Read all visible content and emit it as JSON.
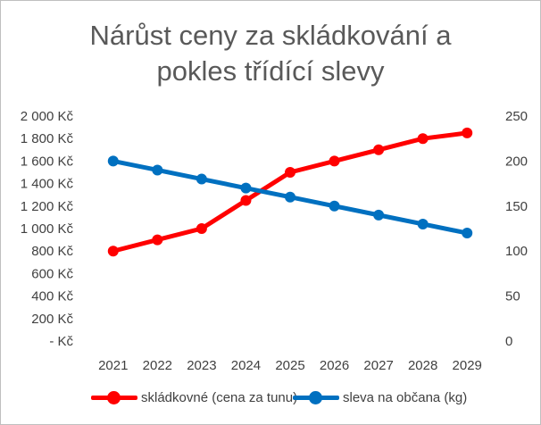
{
  "chart_data": {
    "type": "line",
    "title_lines": [
      "Nárůst ceny za skládkování a",
      "pokles třídící slevy"
    ],
    "categories": [
      "2021",
      "2022",
      "2023",
      "2024",
      "2025",
      "2026",
      "2027",
      "2028",
      "2029"
    ],
    "series": [
      {
        "name": "skládkovné (cena za tunu)",
        "axis": "left",
        "color": "#ff0000",
        "values": [
          800,
          900,
          1000,
          1250,
          1500,
          1600,
          1700,
          1800,
          1850
        ]
      },
      {
        "name": "sleva na občana (kg)",
        "axis": "right",
        "color": "#0070c0",
        "values": [
          200,
          190,
          180,
          170,
          160,
          150,
          140,
          130,
          120
        ]
      }
    ],
    "y_left": {
      "ylim": [
        0,
        2000
      ],
      "tick_labels": [
        "-  Kč",
        "200 Kč",
        "400 Kč",
        "600 Kč",
        "800 Kč",
        "1 000 Kč",
        "1 200 Kč",
        "1 400 Kč",
        "1 600 Kč",
        "1 800 Kč",
        "2 000 Kč"
      ]
    },
    "y_right": {
      "ylim": [
        0,
        250
      ],
      "tick_labels": [
        "0",
        "50",
        "100",
        "150",
        "200",
        "250"
      ]
    },
    "grid": false,
    "legend_position": "bottom"
  }
}
